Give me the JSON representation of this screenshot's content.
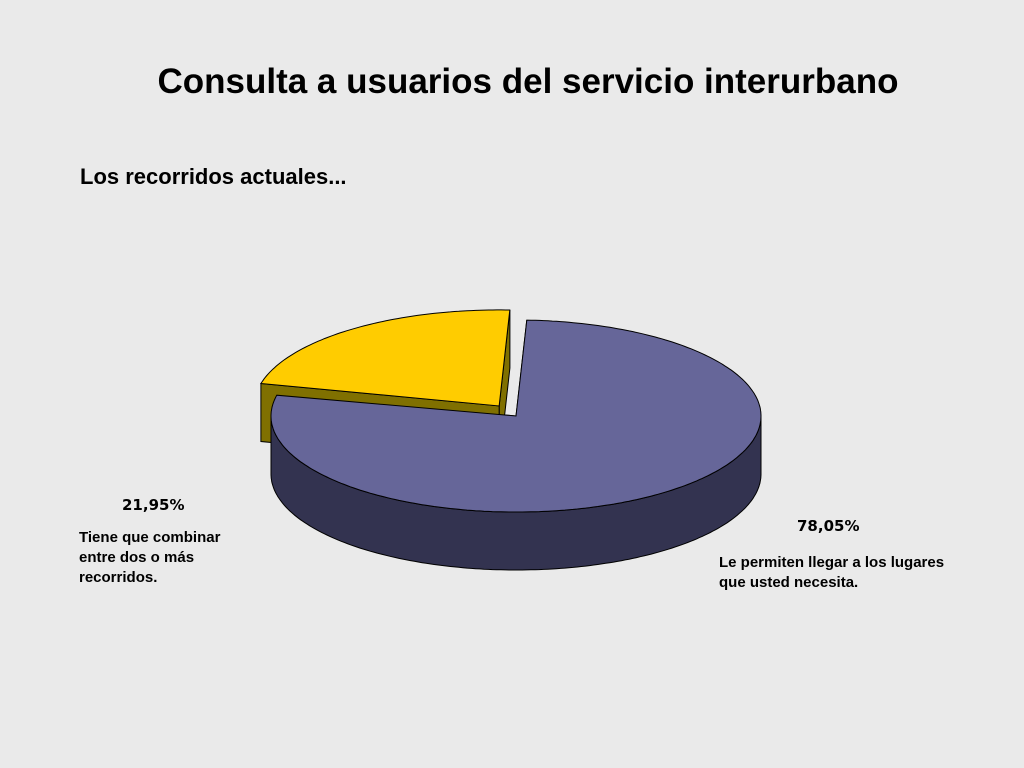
{
  "slide": {
    "title": "Consulta a usuarios del servicio interurbano",
    "subtitle": "Los recorridos actuales..."
  },
  "chart_data": {
    "type": "pie",
    "style": "3d-exploded",
    "slices": [
      {
        "value": 21.95,
        "value_label": "21,95%",
        "label": "Tiene que combinar entre dos o más recorridos.",
        "top_color": "#ffcc00",
        "side_color": "#807000",
        "exploded": true
      },
      {
        "value": 78.05,
        "value_label": "78,05%",
        "label": "Le permiten llegar a los lugares que usted necesita.",
        "top_color": "#666699",
        "side_color": "#333350",
        "exploded": false
      }
    ]
  }
}
